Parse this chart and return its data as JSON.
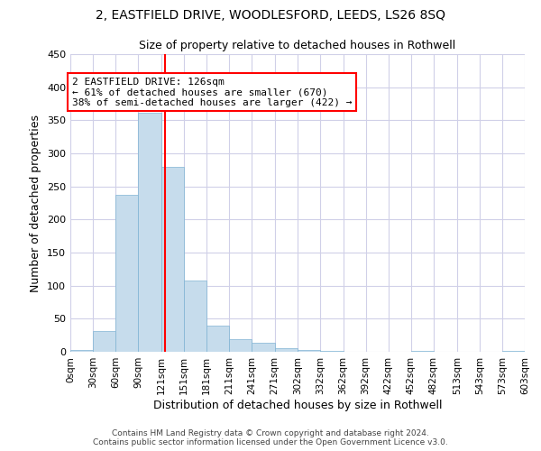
{
  "title1": "2, EASTFIELD DRIVE, WOODLESFORD, LEEDS, LS26 8SQ",
  "title2": "Size of property relative to detached houses in Rothwell",
  "xlabel": "Distribution of detached houses by size in Rothwell",
  "ylabel": "Number of detached properties",
  "bar_values": [
    3,
    32,
    237,
    362,
    280,
    108,
    40,
    19,
    14,
    6,
    3,
    1,
    0,
    0,
    0,
    2,
    0,
    0,
    0,
    1
  ],
  "bin_edges": [
    0,
    30,
    60,
    90,
    121,
    151,
    181,
    211,
    241,
    271,
    302,
    332,
    362,
    392,
    422,
    452,
    482,
    513,
    543,
    573,
    603
  ],
  "bar_color": "#c6dcec",
  "bar_edge_color": "#7fb3d3",
  "grid_color": "#d0d0e8",
  "vline_x": 126,
  "vline_color": "red",
  "annotation_title": "2 EASTFIELD DRIVE: 126sqm",
  "annotation_line1": "← 61% of detached houses are smaller (670)",
  "annotation_line2": "38% of semi-detached houses are larger (422) →",
  "annotation_box_color": "white",
  "annotation_box_edge_color": "red",
  "footer1": "Contains HM Land Registry data © Crown copyright and database right 2024.",
  "footer2": "Contains public sector information licensed under the Open Government Licence v3.0.",
  "ylim": [
    0,
    450
  ],
  "yticks": [
    0,
    50,
    100,
    150,
    200,
    250,
    300,
    350,
    400,
    450
  ],
  "tick_labels": [
    "0sqm",
    "30sqm",
    "60sqm",
    "90sqm",
    "121sqm",
    "151sqm",
    "181sqm",
    "211sqm",
    "241sqm",
    "271sqm",
    "302sqm",
    "332sqm",
    "362sqm",
    "392sqm",
    "422sqm",
    "452sqm",
    "482sqm",
    "513sqm",
    "543sqm",
    "573sqm",
    "603sqm"
  ],
  "title1_fontsize": 10,
  "title2_fontsize": 9,
  "ylabel_fontsize": 9,
  "xlabel_fontsize": 9,
  "tick_fontsize": 7.5,
  "footer_fontsize": 6.5,
  "annot_fontsize": 8
}
